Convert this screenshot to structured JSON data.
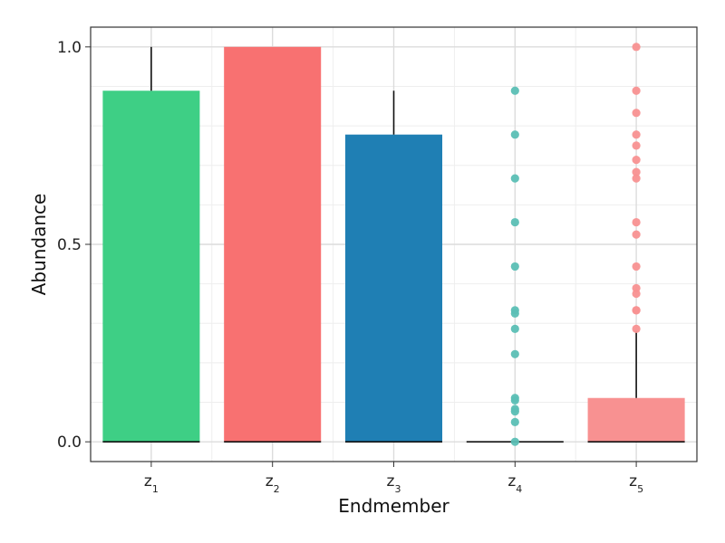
{
  "chart_data": {
    "type": "bar",
    "xlabel": "Endmember",
    "ylabel": "Abundance",
    "categories": [
      {
        "base": "z",
        "sub": "1"
      },
      {
        "base": "z",
        "sub": "2"
      },
      {
        "base": "z",
        "sub": "3"
      },
      {
        "base": "z",
        "sub": "4"
      },
      {
        "base": "z",
        "sub": "5"
      }
    ],
    "values": [
      0.889,
      1.0,
      0.778,
      0.0,
      0.111
    ],
    "whiskers": [
      {
        "lower": 0.0,
        "upper": 1.0
      },
      {
        "lower": 0.0,
        "upper": 1.0
      },
      {
        "lower": 0.0,
        "upper": 0.889
      },
      {
        "lower": 0.0,
        "upper": 0.0
      },
      {
        "lower": 0.0,
        "upper": 0.28
      }
    ],
    "outliers": [
      [],
      [],
      [],
      [
        0.889,
        0.778,
        0.667,
        0.556,
        0.444,
        0.333,
        0.325,
        0.286,
        0.222,
        0.111,
        0.105,
        0.083,
        0.077,
        0.05,
        0.0
      ],
      [
        1.0,
        0.889,
        0.833,
        0.778,
        0.75,
        0.714,
        0.683,
        0.667,
        0.556,
        0.525,
        0.444,
        0.389,
        0.375,
        0.333,
        0.333,
        0.286
      ]
    ],
    "colors": [
      "#3ecf85",
      "#f87171",
      "#1f7fb4",
      "#5bbfb5",
      "#f89191"
    ],
    "ylim": [
      -0.05,
      1.05
    ],
    "yticks": [
      0.0,
      0.5,
      1.0
    ],
    "ytick_labels": [
      "0.0",
      "0.5",
      "1.0"
    ],
    "grid": true,
    "legend": "none"
  }
}
